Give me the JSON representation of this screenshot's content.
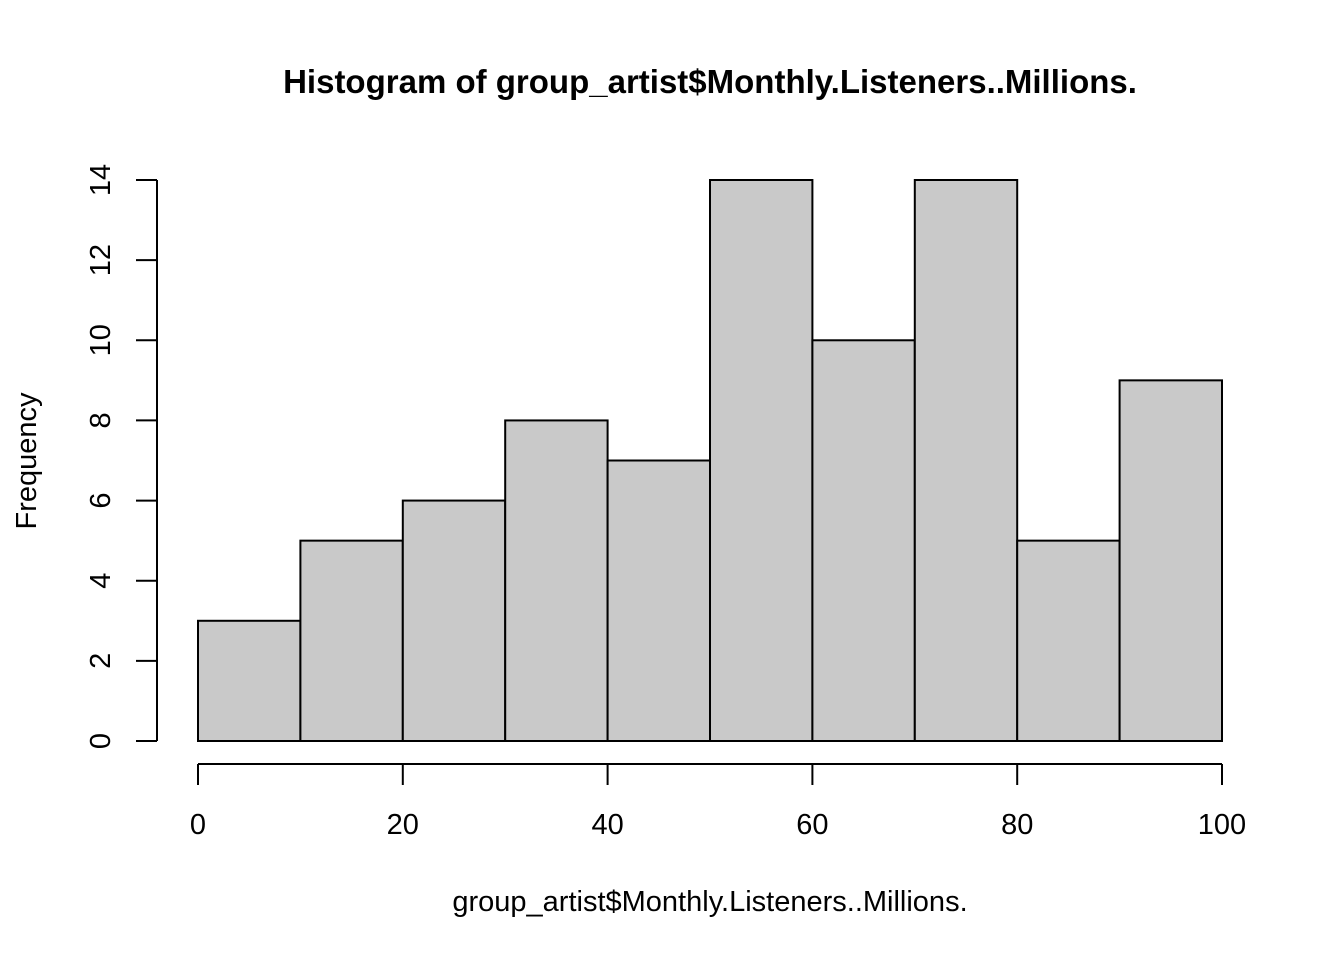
{
  "chart_data": {
    "type": "bar",
    "subtype": "histogram",
    "title": "Histogram of group_artist$Monthly.Listeners..Millions.",
    "xlabel": "group_artist$Monthly.Listeners..Millions.",
    "ylabel": "Frequency",
    "bins": [
      {
        "start": 0,
        "end": 10,
        "count": 3
      },
      {
        "start": 10,
        "end": 20,
        "count": 5
      },
      {
        "start": 20,
        "end": 30,
        "count": 6
      },
      {
        "start": 30,
        "end": 40,
        "count": 8
      },
      {
        "start": 40,
        "end": 50,
        "count": 7
      },
      {
        "start": 50,
        "end": 60,
        "count": 14
      },
      {
        "start": 60,
        "end": 70,
        "count": 10
      },
      {
        "start": 70,
        "end": 80,
        "count": 14
      },
      {
        "start": 80,
        "end": 90,
        "count": 5
      },
      {
        "start": 90,
        "end": 100,
        "count": 9
      }
    ],
    "xlim": [
      0,
      100
    ],
    "ylim": [
      0,
      14
    ],
    "x_ticks": [
      "0",
      "20",
      "40",
      "60",
      "80",
      "100"
    ],
    "y_ticks": [
      "0",
      "2",
      "4",
      "6",
      "8",
      "10",
      "12",
      "14"
    ],
    "bar_fill": "#c9c9c9",
    "bar_stroke": "#000000",
    "grid": false,
    "legend": "none"
  }
}
